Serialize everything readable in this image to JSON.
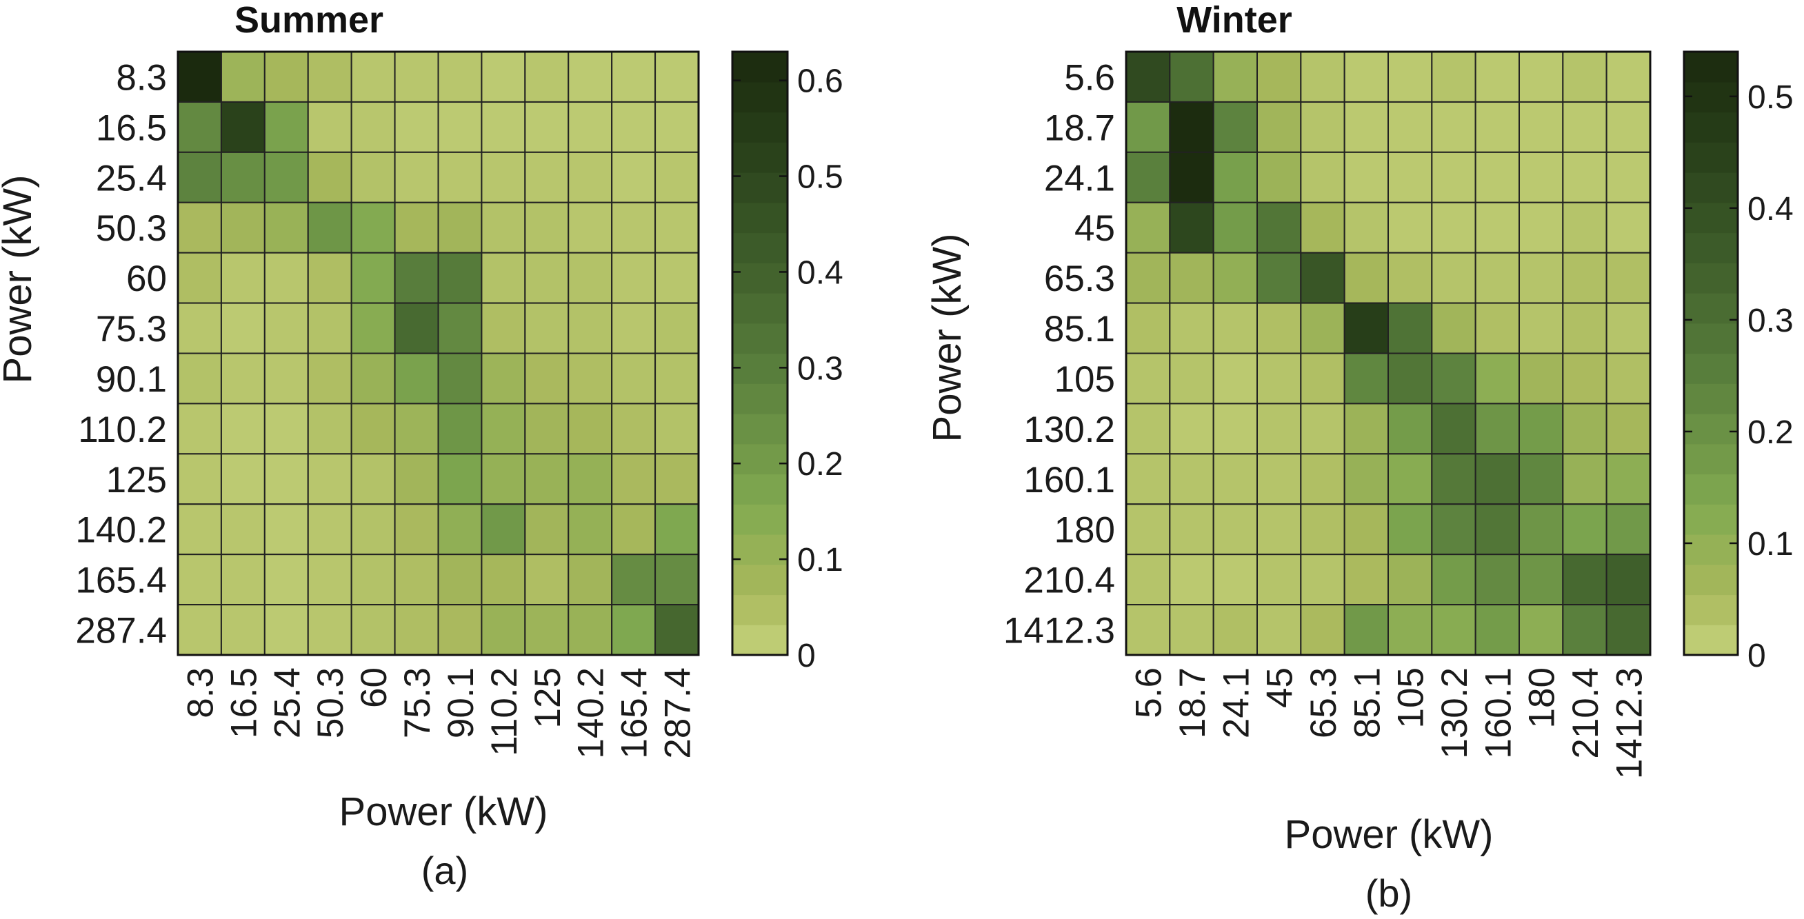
{
  "chart_data": [
    {
      "type": "heatmap",
      "title": "Summer",
      "subfigure_label": "(a)",
      "xlabel": "Power (kW)",
      "ylabel": "Power (kW)",
      "x_categories": [
        "8.3",
        "16.5",
        "25.4",
        "50.3",
        "60",
        "75.3",
        "90.1",
        "110.2",
        "125",
        "140.2",
        "165.4",
        "287.4"
      ],
      "y_categories": [
        "8.3",
        "16.5",
        "25.4",
        "50.3",
        "60",
        "75.3",
        "90.1",
        "110.2",
        "125",
        "140.2",
        "165.4",
        "287.4"
      ],
      "values": [
        [
          0.63,
          0.09,
          0.07,
          0.05,
          0.03,
          0.03,
          0.03,
          0.02,
          0.03,
          0.02,
          0.02,
          0.02
        ],
        [
          0.26,
          0.52,
          0.18,
          0.03,
          0.03,
          0.02,
          0.02,
          0.02,
          0.02,
          0.02,
          0.02,
          0.02
        ],
        [
          0.28,
          0.24,
          0.21,
          0.07,
          0.04,
          0.03,
          0.03,
          0.03,
          0.03,
          0.03,
          0.02,
          0.03
        ],
        [
          0.06,
          0.08,
          0.1,
          0.22,
          0.15,
          0.07,
          0.08,
          0.04,
          0.04,
          0.03,
          0.03,
          0.03
        ],
        [
          0.05,
          0.03,
          0.03,
          0.05,
          0.15,
          0.3,
          0.31,
          0.04,
          0.04,
          0.04,
          0.03,
          0.03
        ],
        [
          0.03,
          0.02,
          0.03,
          0.04,
          0.14,
          0.37,
          0.26,
          0.05,
          0.04,
          0.04,
          0.03,
          0.04
        ],
        [
          0.04,
          0.03,
          0.03,
          0.05,
          0.1,
          0.18,
          0.26,
          0.09,
          0.06,
          0.05,
          0.04,
          0.04
        ],
        [
          0.03,
          0.02,
          0.02,
          0.04,
          0.07,
          0.09,
          0.22,
          0.11,
          0.08,
          0.07,
          0.05,
          0.04
        ],
        [
          0.03,
          0.02,
          0.02,
          0.03,
          0.04,
          0.08,
          0.17,
          0.11,
          0.1,
          0.11,
          0.06,
          0.06
        ],
        [
          0.03,
          0.03,
          0.02,
          0.03,
          0.04,
          0.06,
          0.12,
          0.21,
          0.08,
          0.11,
          0.07,
          0.16
        ],
        [
          0.03,
          0.03,
          0.02,
          0.03,
          0.04,
          0.05,
          0.08,
          0.07,
          0.05,
          0.08,
          0.25,
          0.25
        ],
        [
          0.03,
          0.03,
          0.02,
          0.03,
          0.04,
          0.05,
          0.06,
          0.1,
          0.09,
          0.1,
          0.16,
          0.38
        ]
      ],
      "colorbar": {
        "min": 0,
        "max": 0.63,
        "ticks": [
          0,
          0.1,
          0.2,
          0.3,
          0.4,
          0.5,
          0.6
        ],
        "tick_labels": [
          "0",
          "0.1",
          "0.2",
          "0.3",
          "0.4",
          "0.5",
          "0.6"
        ]
      },
      "grid": true
    },
    {
      "type": "heatmap",
      "title": "Winter",
      "subfigure_label": "(b)",
      "xlabel": "Power (kW)",
      "ylabel": "Power (kW)",
      "x_categories": [
        "5.6",
        "18.7",
        "24.1",
        "45",
        "65.3",
        "85.1",
        "105",
        "130.2",
        "160.1",
        "180",
        "210.4",
        "1412.3"
      ],
      "y_categories": [
        "5.6",
        "18.7",
        "24.1",
        "45",
        "65.3",
        "85.1",
        "105",
        "130.2",
        "160.1",
        "180",
        "210.4",
        "1412.3"
      ],
      "values": [
        [
          0.42,
          0.3,
          0.09,
          0.06,
          0.03,
          0.02,
          0.02,
          0.03,
          0.02,
          0.02,
          0.03,
          0.02
        ],
        [
          0.18,
          0.53,
          0.24,
          0.07,
          0.03,
          0.02,
          0.02,
          0.02,
          0.02,
          0.02,
          0.02,
          0.02
        ],
        [
          0.25,
          0.53,
          0.16,
          0.08,
          0.03,
          0.02,
          0.02,
          0.02,
          0.02,
          0.02,
          0.02,
          0.02
        ],
        [
          0.09,
          0.43,
          0.17,
          0.28,
          0.06,
          0.03,
          0.02,
          0.02,
          0.02,
          0.02,
          0.03,
          0.02
        ],
        [
          0.07,
          0.07,
          0.1,
          0.26,
          0.38,
          0.06,
          0.04,
          0.03,
          0.03,
          0.03,
          0.04,
          0.04
        ],
        [
          0.04,
          0.03,
          0.03,
          0.04,
          0.08,
          0.46,
          0.29,
          0.07,
          0.04,
          0.03,
          0.04,
          0.03
        ],
        [
          0.03,
          0.03,
          0.02,
          0.03,
          0.04,
          0.23,
          0.28,
          0.24,
          0.11,
          0.07,
          0.05,
          0.04
        ],
        [
          0.03,
          0.02,
          0.02,
          0.03,
          0.03,
          0.08,
          0.17,
          0.3,
          0.19,
          0.17,
          0.08,
          0.06
        ],
        [
          0.03,
          0.03,
          0.03,
          0.03,
          0.04,
          0.09,
          0.12,
          0.27,
          0.3,
          0.23,
          0.09,
          0.11
        ],
        [
          0.03,
          0.03,
          0.03,
          0.03,
          0.04,
          0.06,
          0.15,
          0.24,
          0.28,
          0.19,
          0.15,
          0.18
        ],
        [
          0.03,
          0.02,
          0.02,
          0.03,
          0.03,
          0.05,
          0.08,
          0.17,
          0.22,
          0.19,
          0.32,
          0.35
        ],
        [
          0.03,
          0.03,
          0.04,
          0.03,
          0.05,
          0.18,
          0.11,
          0.12,
          0.17,
          0.11,
          0.25,
          0.32
        ]
      ],
      "colorbar": {
        "min": 0,
        "max": 0.54,
        "ticks": [
          0,
          0.1,
          0.2,
          0.3,
          0.4,
          0.5
        ],
        "tick_labels": [
          "0",
          "0.1",
          "0.2",
          "0.3",
          "0.4",
          "0.5"
        ]
      },
      "grid": true
    }
  ]
}
